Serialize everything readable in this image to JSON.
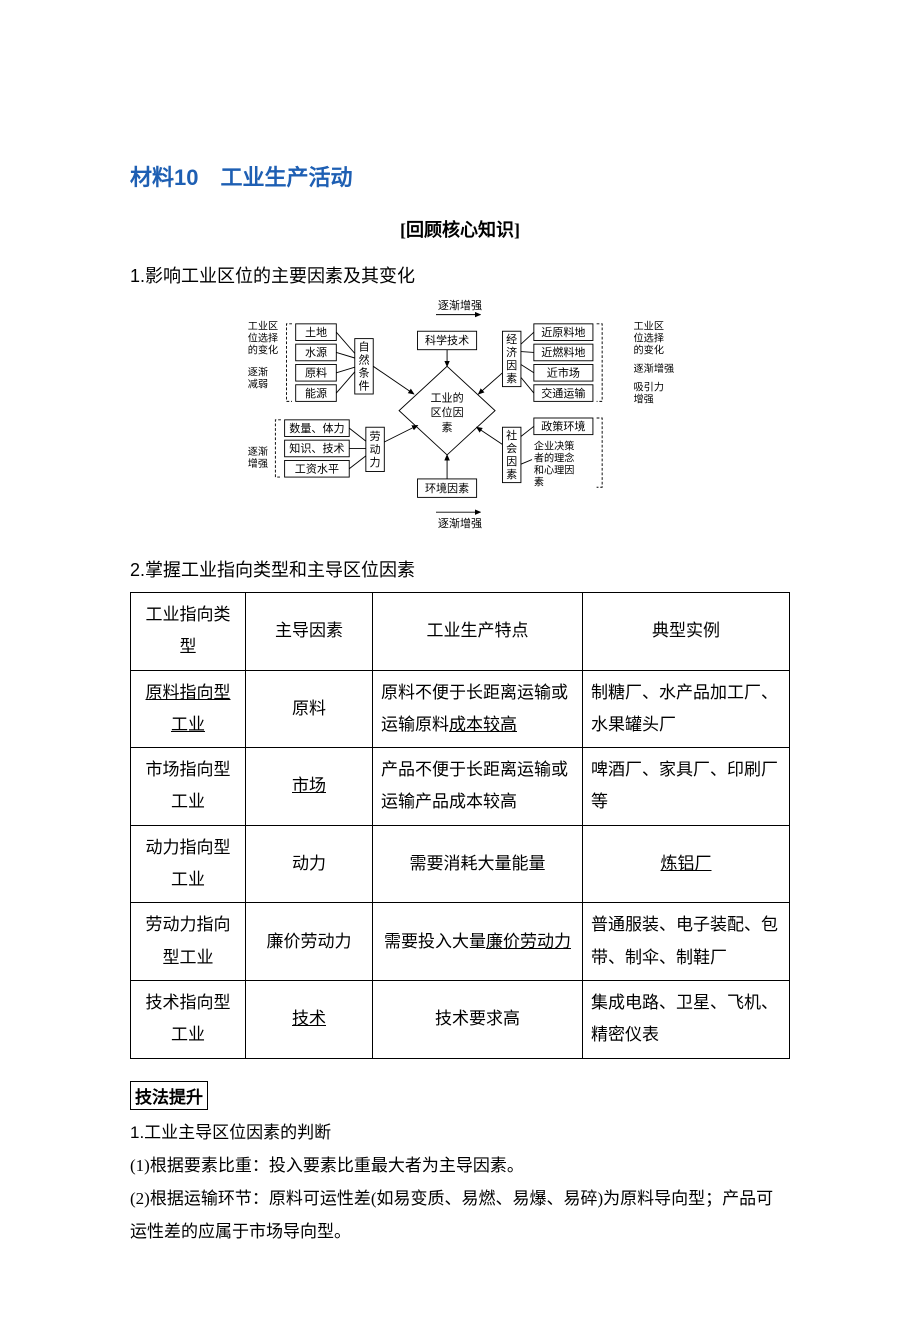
{
  "title_prefix": "材料10",
  "title_main": "　工业生产活动",
  "subtitle": "[回顾核心知识]",
  "heading1": "1.影响工业区位的主要因素及其变化",
  "heading2": "2.掌握工业指向类型和主导区位因素",
  "diagram": {
    "top_label": "逐渐增强",
    "bottom_label": "逐渐增强",
    "left_group_top_label1": "工业区",
    "left_group_top_label2": "位选择",
    "left_group_top_label3": "的变化",
    "left_mid_label1": "逐渐",
    "left_mid_label2": "减弱",
    "left_bot_label1": "逐渐",
    "left_bot_label2": "增强",
    "right_group_top_label1": "工业区",
    "right_group_top_label2": "位选择",
    "right_group_top_label3": "的变化",
    "right_mid_label1": "逐渐增强",
    "right_bot_label1": "吸引力",
    "right_bot_label2": "增强",
    "left_boxes_top": [
      "土地",
      "水源",
      "原料",
      "能源"
    ],
    "left_boxes_bot": [
      "数量、体力",
      "知识、技术",
      "工资水平"
    ],
    "col_nat1": "自",
    "col_nat2": "然",
    "col_nat3": "条",
    "col_nat4": "件",
    "col_lab1": "劳",
    "col_lab2": "动",
    "col_lab3": "力",
    "center_top": "科学技术",
    "center_mid1": "工业的",
    "center_mid2": "区位因",
    "center_mid3": "素",
    "center_bottom": "环境因素",
    "col_econ1": "经",
    "col_econ2": "济",
    "col_econ3": "因",
    "col_econ4": "素",
    "col_soc1": "社",
    "col_soc2": "会",
    "col_soc3": "因",
    "col_soc4": "素",
    "right_boxes_top": [
      "近原料地",
      "近燃料地",
      "近市场",
      "交通运输"
    ],
    "right_box_policy": "政策环境",
    "right_text_ent1": "企业决策",
    "right_text_ent2": "者的理念",
    "right_text_ent3": "和心理因",
    "right_text_ent4": "素"
  },
  "table": {
    "headers": [
      "工业指向类型",
      "主导因素",
      "工业生产特点",
      "典型实例"
    ],
    "rows": [
      {
        "type_html": "<span class='u'>原料指向型工业</span>",
        "factor_html": "原料",
        "feature_html": "原料不便于长距离运输或运输原料<span class='u'>成本较高</span>",
        "example_html": "制糖厂、水产品加工厂、水果罐头厂"
      },
      {
        "type_html": "市场指向型工业",
        "factor_html": "<span class='u'>市场</span>",
        "feature_html": "产品不便于长距离运输或运输产品成本较高",
        "example_html": "啤酒厂、家具厂、印刷厂等"
      },
      {
        "type_html": "动力指向型工业",
        "factor_html": "动力",
        "feature_html": "需要消耗大量能量",
        "example_html": "<span class='u'>炼铝厂</span>"
      },
      {
        "type_html": "劳动力指向型工业",
        "factor_html": "廉价劳动力",
        "feature_html": "需要投入大量<span class='u'>廉价劳动力</span>",
        "example_html": "普通服装、电子装配、包带、制伞、制鞋厂"
      },
      {
        "type_html": "技术指向型工业",
        "factor_html": "<span class='u'>技术</span>",
        "feature_html": "技术要求高",
        "example_html": "集成电路、卫星、飞机、精密仪表"
      }
    ]
  },
  "boxlabel": "技法提升",
  "para_heading": "1.工业主导区位因素的判断",
  "para1": "(1)根据要素比重：投入要素比重最大者为主导因素。",
  "para2": "(2)根据运输环节：原料可运性差(如易变质、易燃、易爆、易碎)为原料导向型；产品可运性差的应属于市场导向型。",
  "colors": {
    "title_color": "#1e5fb3",
    "text_color": "#000000",
    "border_color": "#000000",
    "background": "#ffffff"
  }
}
